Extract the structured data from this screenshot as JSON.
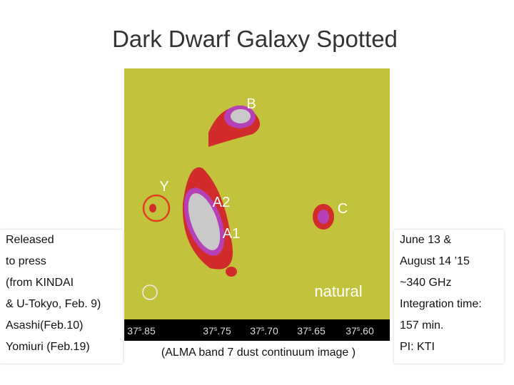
{
  "slide": {
    "title": "Dark Dwarf Galaxy Spotted",
    "left_box": {
      "lines": [
        "Released",
        "to press",
        "(from KINDAI",
        "& U-Tokyo, Feb. 9)",
        "Asashi(Feb.10)",
        "Yomiuri (Feb.19)"
      ]
    },
    "right_box": {
      "lines": [
        "June 13 &",
        "August 14 ’15",
        "~340 GHz",
        "Integration time:",
        "157 min.",
        "PI: KTI"
      ]
    },
    "image": {
      "labels": {
        "b": "B",
        "y": "Y",
        "a2": "A2",
        "a1": "A1",
        "c": "C",
        "natural": "natural"
      },
      "axis_ticks": [
        {
          "major": "37",
          "unit": "s",
          "minor": ".85"
        },
        {
          "major": "37",
          "unit": "s",
          "minor": ".75"
        },
        {
          "major": "37",
          "unit": "s",
          "minor": ".70"
        },
        {
          "major": "37",
          "unit": "s",
          "minor": ".65"
        },
        {
          "major": "37",
          "unit": "s",
          "minor": ".60"
        }
      ]
    },
    "caption": "(ALMA band 7 dust continuum image )"
  }
}
